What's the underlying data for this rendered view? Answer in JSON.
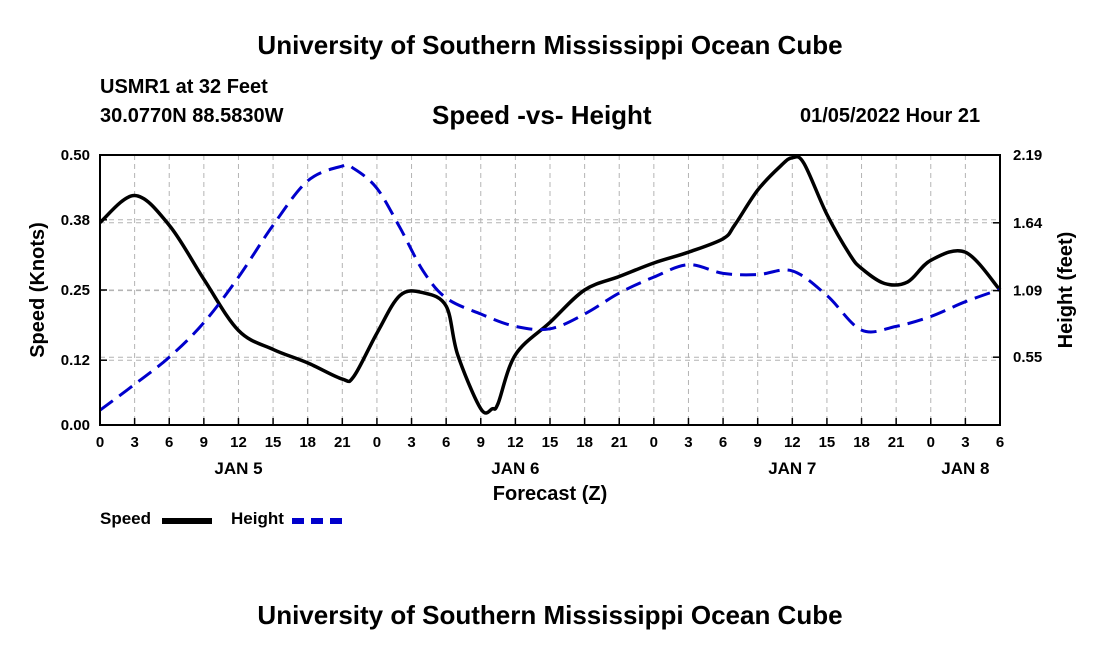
{
  "header": {
    "title": "University of Southern Mississippi Ocean Cube",
    "station": "USMR1 at 32 Feet",
    "coords": "30.0770N  88.5830W",
    "chart_title": "Speed -vs- Height",
    "datetime": "01/05/2022 Hour 21"
  },
  "footer": {
    "title": "University of Southern Mississippi Ocean Cube"
  },
  "legend": {
    "speed_label": "Speed",
    "height_label": "Height"
  },
  "colors": {
    "speed": "#000000",
    "height": "#0000cc",
    "grid": "#b4b4b4"
  },
  "chart_data": {
    "type": "line",
    "title": "Speed -vs- Height",
    "xlabel": "Forecast (Z)",
    "ylabel": "Speed (Knots)",
    "y2label": "Height (feet)",
    "x_range": [
      0,
      78
    ],
    "y_range": [
      0,
      0.5
    ],
    "y2_range": [
      0,
      2.19
    ],
    "x_tick_hours": [
      0,
      3,
      6,
      9,
      12,
      15,
      18,
      21,
      24,
      27,
      30,
      33,
      36,
      39,
      42,
      45,
      48,
      51,
      54,
      57,
      60,
      63,
      66,
      69,
      72,
      75,
      78
    ],
    "x_tick_labels": [
      "0",
      "3",
      "6",
      "9",
      "12",
      "15",
      "18",
      "21",
      "0",
      "3",
      "6",
      "9",
      "12",
      "15",
      "18",
      "21",
      "0",
      "3",
      "6",
      "9",
      "12",
      "15",
      "18",
      "21",
      "0",
      "3",
      "6"
    ],
    "day_labels": [
      {
        "hour": 12,
        "label": "JAN 5"
      },
      {
        "hour": 36,
        "label": "JAN 6"
      },
      {
        "hour": 60,
        "label": "JAN 7"
      },
      {
        "hour": 75,
        "label": "JAN 8"
      }
    ],
    "y_ticks": [
      0.0,
      0.12,
      0.25,
      0.38,
      0.5
    ],
    "y_tick_labels": [
      "0.00",
      "0.12",
      "0.25",
      "0.38",
      "0.50"
    ],
    "y2_ticks": [
      0.55,
      1.09,
      1.64,
      2.19
    ],
    "y2_tick_labels": [
      "0.55",
      "1.09",
      "1.64",
      "2.19"
    ],
    "series": [
      {
        "name": "Speed",
        "axis": "left",
        "style": "solid",
        "x": [
          0,
          3,
          6,
          9,
          12,
          15,
          18,
          21,
          22,
          24,
          26,
          28,
          30,
          31,
          33,
          34,
          34.5,
          36,
          39,
          42,
          45,
          48,
          51,
          54,
          55,
          57,
          59,
          60,
          61,
          63,
          65,
          66,
          68,
          70,
          72,
          75,
          78
        ],
        "y": [
          0.375,
          0.425,
          0.37,
          0.27,
          0.175,
          0.14,
          0.115,
          0.085,
          0.09,
          0.17,
          0.24,
          0.245,
          0.22,
          0.13,
          0.03,
          0.03,
          0.04,
          0.13,
          0.19,
          0.25,
          0.275,
          0.3,
          0.32,
          0.345,
          0.37,
          0.435,
          0.48,
          0.495,
          0.485,
          0.39,
          0.315,
          0.29,
          0.262,
          0.265,
          0.305,
          0.32,
          0.25
        ]
      },
      {
        "name": "Height",
        "axis": "right",
        "style": "dashed",
        "x": [
          0,
          3,
          6,
          9,
          12,
          15,
          18,
          21,
          22,
          24,
          26,
          28,
          30,
          33,
          36,
          39,
          42,
          45,
          48,
          51,
          54,
          57,
          60,
          63,
          66,
          69,
          72,
          75,
          78
        ],
        "y": [
          0.12,
          0.33,
          0.55,
          0.83,
          1.2,
          1.62,
          1.98,
          2.1,
          2.08,
          1.92,
          1.6,
          1.25,
          1.03,
          0.9,
          0.8,
          0.78,
          0.9,
          1.07,
          1.2,
          1.3,
          1.23,
          1.22,
          1.25,
          1.05,
          0.77,
          0.8,
          0.88,
          1.0,
          1.1
        ]
      }
    ]
  }
}
